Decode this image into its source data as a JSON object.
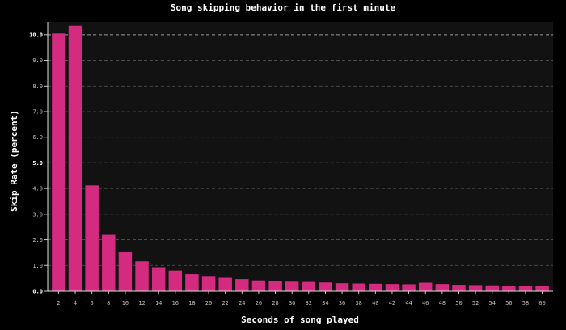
{
  "chart_data": {
    "type": "bar",
    "title": "Song skipping behavior in the first minute",
    "xlabel": "Seconds of song played",
    "ylabel": "Skip Rate (percent)",
    "categories": [
      "2",
      "4",
      "6",
      "8",
      "10",
      "12",
      "14",
      "16",
      "18",
      "20",
      "22",
      "24",
      "26",
      "28",
      "30",
      "32",
      "34",
      "36",
      "38",
      "40",
      "42",
      "44",
      "46",
      "48",
      "50",
      "52",
      "54",
      "56",
      "58",
      "60"
    ],
    "values": [
      10.05,
      10.35,
      4.12,
      2.22,
      1.52,
      1.16,
      0.93,
      0.8,
      0.66,
      0.59,
      0.52,
      0.47,
      0.42,
      0.39,
      0.37,
      0.36,
      0.34,
      0.31,
      0.3,
      0.29,
      0.28,
      0.27,
      0.33,
      0.28,
      0.25,
      0.24,
      0.23,
      0.22,
      0.21,
      0.2
    ],
    "ylim": [
      0,
      10.5
    ],
    "yticks": [
      "0.0",
      "1.0",
      "2.0",
      "3.0",
      "4.0",
      "5.0",
      "6.0",
      "7.0",
      "8.0",
      "9.0",
      "10.0"
    ],
    "major_yticks": [
      "0.0",
      "5.0",
      "10.0"
    ],
    "grid": true,
    "colors": {
      "bar": "#d42a7f",
      "background": "#000000",
      "plot_background": "#121212",
      "grid": "#555555",
      "text": "#ffffff"
    }
  }
}
